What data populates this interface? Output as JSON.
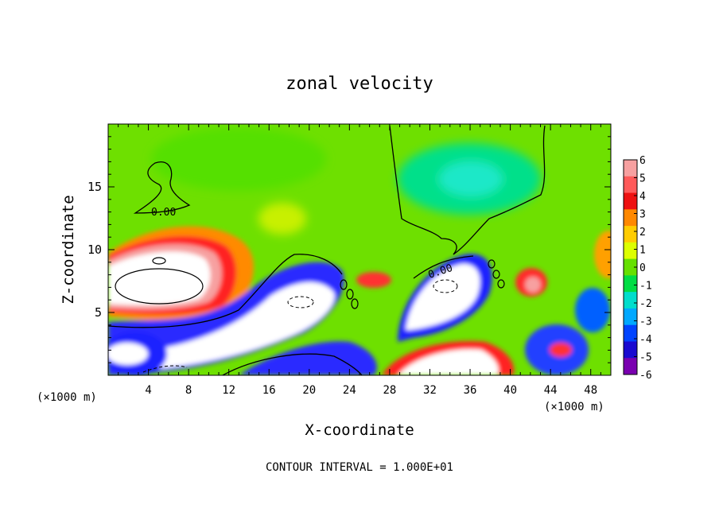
{
  "chart_data": {
    "type": "heatmap",
    "title": "zonal velocity",
    "xlabel": "X-coordinate",
    "ylabel": "Z-coordinate",
    "x_unit": "(×1000 m)",
    "x_unit_right": "(×1000 m)",
    "xlim": [
      0,
      50
    ],
    "ylim": [
      0,
      20
    ],
    "x_ticks": [
      4,
      8,
      12,
      16,
      20,
      24,
      28,
      32,
      36,
      40,
      44,
      48
    ],
    "y_ticks": [
      5,
      10,
      15
    ],
    "colorbar": {
      "ticks": [
        6,
        5,
        4,
        3,
        2,
        1,
        0,
        -1,
        -2,
        -3,
        -4,
        -5,
        -6
      ],
      "colors": [
        "#f7a0a0",
        "#ff5a5a",
        "#ee1111",
        "#ff8800",
        "#ffcc00",
        "#ddff00",
        "#66e000",
        "#00dd44",
        "#00ddcc",
        "#00a8ff",
        "#0044ff",
        "#1a0ad0",
        "#7a00b0"
      ]
    },
    "contour_labels": [
      "0.00",
      "0.00"
    ],
    "footer": "CONTOUR INTERVAL = 1.000E+01"
  }
}
